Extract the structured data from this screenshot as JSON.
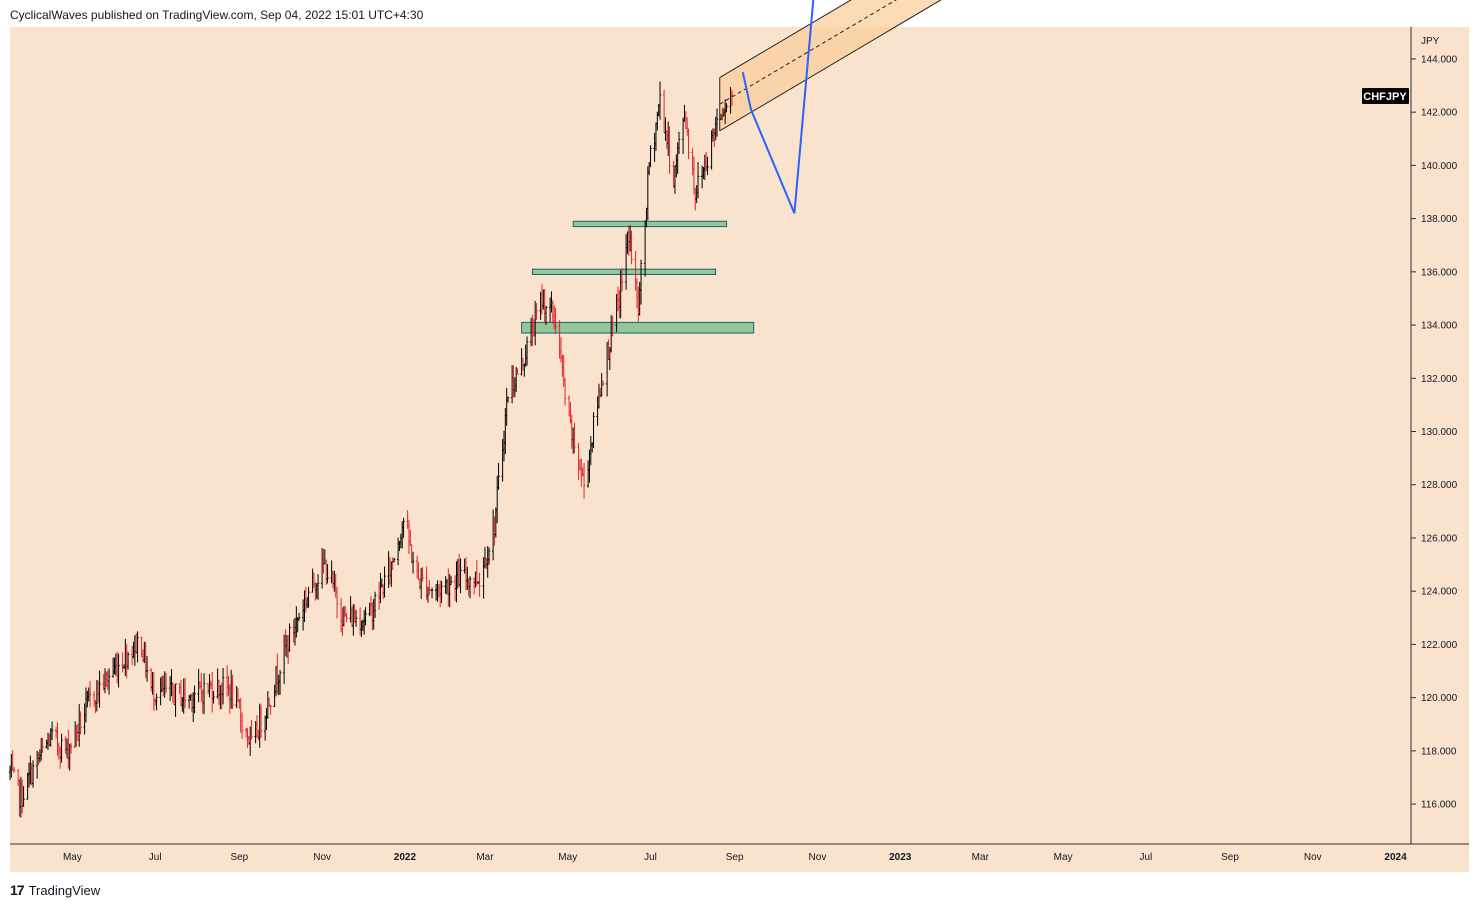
{
  "header": {
    "text": "CyclicalWaves published on TradingView.com, Sep 04, 2022 15:01 UTC+4:30"
  },
  "footer": {
    "logo": "17",
    "brand": "TradingView"
  },
  "colors": {
    "background": "#fae3cc",
    "bar_up": "#000000",
    "bar_down": "#e3242b",
    "zone_fill": "#93c79a",
    "zone_stroke": "#1f5f77",
    "channel_fill": "#f9cf9c",
    "projection": "#2962ff",
    "symbol_badge": "#000000"
  },
  "chart_data": {
    "type": "ohlc",
    "symbol": "CHFJPY",
    "unit": "JPY",
    "last_price": 142.7,
    "y_ticks": [
      "144.000",
      "142.000",
      "140.000",
      "138.000",
      "136.000",
      "134.000",
      "132.000",
      "130.000",
      "128.000",
      "126.000",
      "124.000",
      "122.000",
      "120.000",
      "118.000",
      "116.000"
    ],
    "x_ticks": [
      {
        "label": "May",
        "year": false
      },
      {
        "label": "Jul",
        "year": false
      },
      {
        "label": "Sep",
        "year": false
      },
      {
        "label": "Nov",
        "year": false
      },
      {
        "label": "2022",
        "year": true
      },
      {
        "label": "Mar",
        "year": false
      },
      {
        "label": "May",
        "year": false
      },
      {
        "label": "Jul",
        "year": false
      },
      {
        "label": "Sep",
        "year": false
      },
      {
        "label": "Nov",
        "year": false
      },
      {
        "label": "2023",
        "year": true
      },
      {
        "label": "Mar",
        "year": false
      },
      {
        "label": "May",
        "year": false
      },
      {
        "label": "Jul",
        "year": false
      },
      {
        "label": "Sep",
        "year": false
      },
      {
        "label": "Nov",
        "year": false
      },
      {
        "label": "2024",
        "year": true
      }
    ],
    "price_path": [
      [
        "2021-03-16",
        117.2
      ],
      [
        "2021-03-24",
        116.2
      ],
      [
        "2021-04-01",
        117.2
      ],
      [
        "2021-04-15",
        118.5
      ],
      [
        "2021-04-27",
        118.0
      ],
      [
        "2021-05-15",
        120.0
      ],
      [
        "2021-06-03",
        121.2
      ],
      [
        "2021-06-20",
        122.2
      ],
      [
        "2021-06-28",
        120.3
      ],
      [
        "2021-07-08",
        120.2
      ],
      [
        "2021-07-25",
        120.0
      ],
      [
        "2021-08-12",
        120.4
      ],
      [
        "2021-08-25",
        120.3
      ],
      [
        "2021-09-10",
        118.2
      ],
      [
        "2021-09-22",
        119.8
      ],
      [
        "2021-10-06",
        122.0
      ],
      [
        "2021-10-24",
        124.2
      ],
      [
        "2021-11-03",
        125.0
      ],
      [
        "2021-11-17",
        123.0
      ],
      [
        "2021-12-05",
        123.0
      ],
      [
        "2021-12-21",
        124.8
      ],
      [
        "2021-12-31",
        126.7
      ],
      [
        "2022-01-10",
        124.5
      ],
      [
        "2022-01-23",
        124.0
      ],
      [
        "2022-02-08",
        124.5
      ],
      [
        "2022-02-25",
        124.5
      ],
      [
        "2022-03-08",
        126.5
      ],
      [
        "2022-03-18",
        131.5
      ],
      [
        "2022-03-28",
        132.5
      ],
      [
        "2022-04-12",
        135.0
      ],
      [
        "2022-04-22",
        134.2
      ],
      [
        "2022-05-01",
        130.5
      ],
      [
        "2022-05-13",
        128.0
      ],
      [
        "2022-05-26",
        132.0
      ],
      [
        "2022-06-08",
        135.0
      ],
      [
        "2022-06-15",
        137.5
      ],
      [
        "2022-06-22",
        134.5
      ],
      [
        "2022-06-30",
        140.0
      ],
      [
        "2022-07-08",
        142.5
      ],
      [
        "2022-07-18",
        139.5
      ],
      [
        "2022-07-26",
        142.0
      ],
      [
        "2022-08-03",
        139.0
      ],
      [
        "2022-08-13",
        140.5
      ],
      [
        "2022-08-20",
        142.0
      ],
      [
        "2022-08-30",
        142.7
      ]
    ],
    "support_zones": [
      {
        "from": "2022-05-05",
        "to": "2022-08-26",
        "top": 137.9,
        "bottom": 137.7
      },
      {
        "from": "2022-04-05",
        "to": "2022-08-18",
        "top": 136.1,
        "bottom": 135.9
      },
      {
        "from": "2022-03-28",
        "to": "2022-09-15",
        "top": 134.1,
        "bottom": 133.7
      }
    ],
    "channel": {
      "start": "2022-08-21",
      "end": "2023-04-10",
      "start_upper": 143.3,
      "end_upper": 150.3,
      "start_lower": 141.3,
      "end_lower": 148.3
    },
    "projection_path": [
      [
        "2022-09-07",
        143.5
      ],
      [
        "2022-09-13",
        142.1
      ],
      [
        "2022-10-15",
        138.2
      ],
      [
        "2022-11-08",
        152.0
      ]
    ],
    "ylim": [
      114.5,
      145.2
    ]
  }
}
